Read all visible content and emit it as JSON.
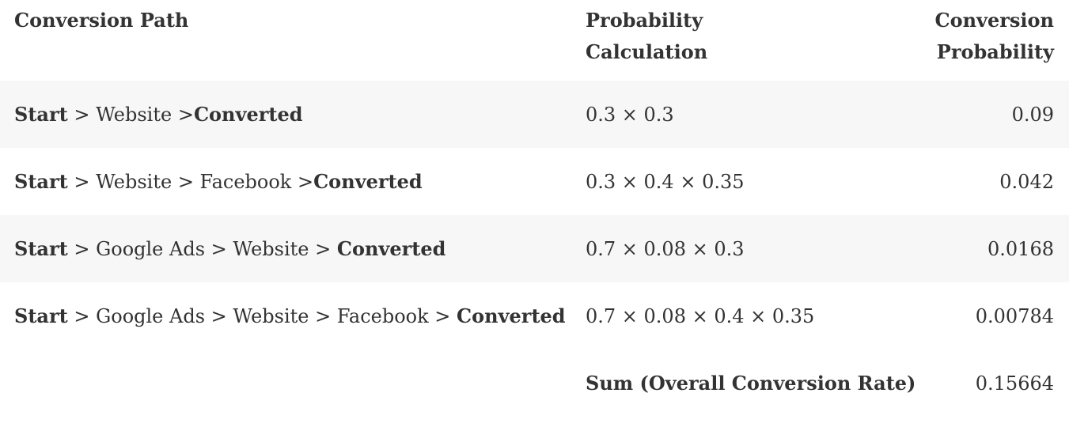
{
  "header": {
    "path": "Conversion Path",
    "calc_line1": "Probability",
    "calc_line2": "Calculation",
    "prob_line1": "Conversion",
    "prob_line2": "Probability"
  },
  "rows": [
    {
      "path": [
        {
          "t": "Start",
          "b": true
        },
        {
          "t": " > Website >",
          "b": false
        },
        {
          "t": "Converted",
          "b": true
        }
      ],
      "calc": "0.3 × 0.3",
      "prob": "0.09"
    },
    {
      "path": [
        {
          "t": "Start",
          "b": true
        },
        {
          "t": " > Website > Facebook >",
          "b": false
        },
        {
          "t": "Converted",
          "b": true
        }
      ],
      "calc": "0.3 × 0.4 × 0.35",
      "prob": "0.042"
    },
    {
      "path": [
        {
          "t": "Start",
          "b": true
        },
        {
          "t": " > Google Ads > Website > ",
          "b": false
        },
        {
          "t": "Converted",
          "b": true
        }
      ],
      "calc": "0.7 × 0.08 × 0.3",
      "prob": "0.0168"
    },
    {
      "path": [
        {
          "t": "Start",
          "b": true
        },
        {
          "t": " > Google Ads > Website > Facebook > ",
          "b": false
        },
        {
          "t": "Converted",
          "b": true
        }
      ],
      "calc": "0.7 × 0.08 × 0.4 × 0.35",
      "prob": "0.00784"
    }
  ],
  "summary": {
    "label": "Sum (Overall Conversion Rate)",
    "value": "0.15664"
  }
}
